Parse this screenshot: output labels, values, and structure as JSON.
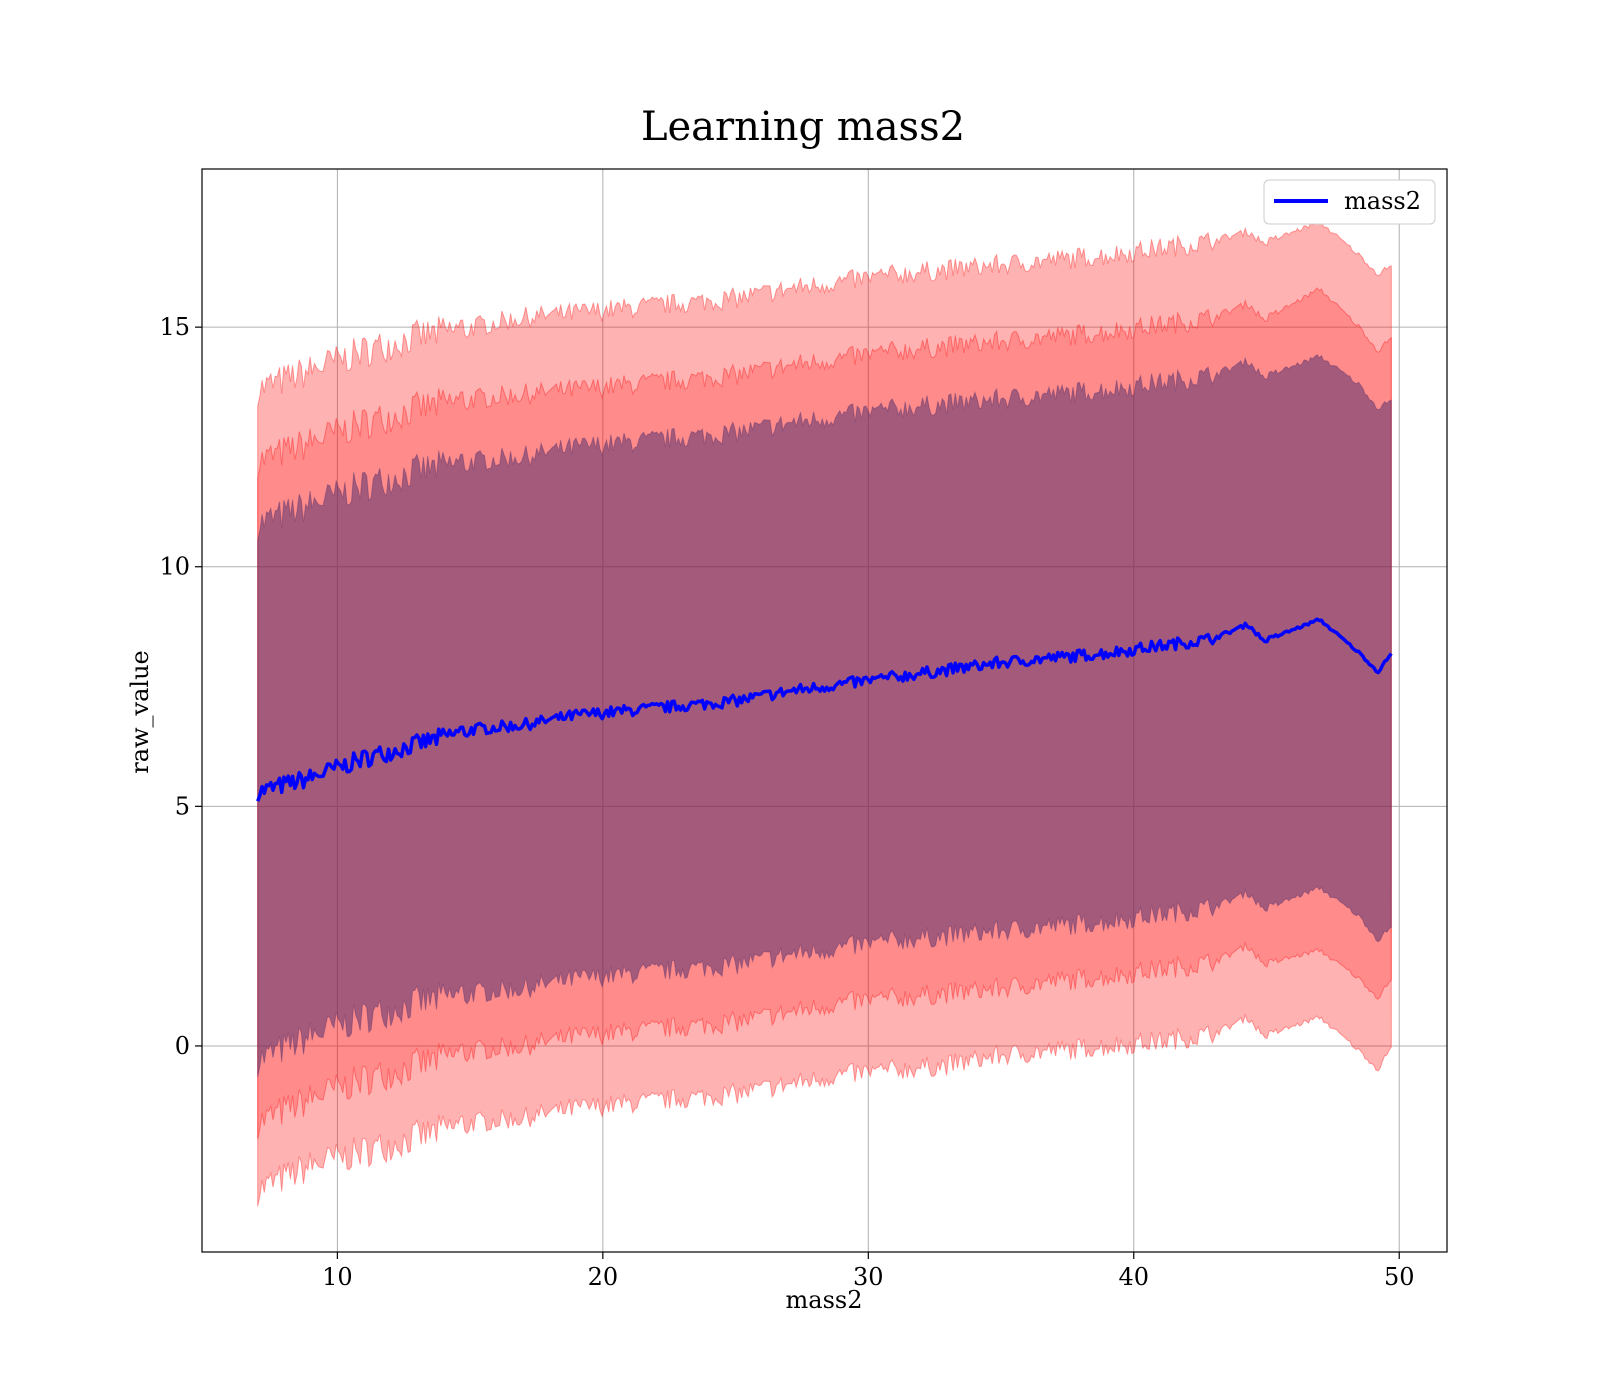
{
  "chart_data": {
    "type": "line",
    "title": "Learning mass2",
    "xlabel": "mass2",
    "ylabel": "raw_value",
    "xlim": [
      4.9,
      51.8
    ],
    "ylim": [
      -4.3,
      18.3
    ],
    "xticks": [
      10,
      20,
      30,
      40,
      50
    ],
    "yticks": [
      0,
      5,
      10,
      15
    ],
    "grid": true,
    "legend_position": "upper-right",
    "series_color": "#0000ff",
    "series": [
      {
        "name": "mass2",
        "x": [
          7,
          9,
          11,
          13,
          15,
          17,
          19,
          21,
          23,
          25,
          27,
          29,
          31,
          33,
          35,
          37,
          39,
          41,
          43,
          44.3,
          44.9,
          47,
          48.5,
          49.2,
          49.7
        ],
        "y": [
          5.3,
          5.6,
          6.0,
          6.3,
          6.6,
          6.7,
          6.9,
          7.0,
          7.1,
          7.2,
          7.4,
          7.55,
          7.7,
          7.85,
          8.0,
          8.1,
          8.2,
          8.35,
          8.5,
          8.8,
          8.45,
          8.9,
          8.2,
          7.8,
          8.2
        ]
      }
    ],
    "bands": [
      {
        "level": "outer",
        "color": "#ff0000",
        "opacity": 0.3,
        "upper": [
          13.7,
          14.1,
          14.5,
          14.8,
          15.0,
          15.2,
          15.3,
          15.4,
          15.5,
          15.6,
          15.8,
          15.95,
          16.1,
          16.2,
          16.3,
          16.4,
          16.5,
          16.65,
          16.8,
          17.0,
          16.75,
          17.2,
          16.5,
          16.1,
          16.3
        ],
        "lower": [
          -3.0,
          -2.5,
          -2.2,
          -1.9,
          -1.6,
          -1.5,
          -1.3,
          -1.2,
          -1.1,
          -1.0,
          -0.8,
          -0.6,
          -0.5,
          -0.4,
          -0.2,
          -0.1,
          0.0,
          0.1,
          0.25,
          0.6,
          0.2,
          0.6,
          -0.1,
          -0.5,
          0.0
        ]
      },
      {
        "level": "middle",
        "color": "#ff0000",
        "opacity": 0.22,
        "upper": [
          12.2,
          12.6,
          13.0,
          13.3,
          13.5,
          13.6,
          13.7,
          13.8,
          13.9,
          14.0,
          14.2,
          14.35,
          14.5,
          14.6,
          14.7,
          14.8,
          14.9,
          15.05,
          15.2,
          15.5,
          15.15,
          15.8,
          15.0,
          14.5,
          14.8
        ],
        "lower": [
          -1.6,
          -1.1,
          -0.7,
          -0.4,
          -0.1,
          0.0,
          0.2,
          0.3,
          0.4,
          0.5,
          0.7,
          0.9,
          1.0,
          1.1,
          1.2,
          1.35,
          1.45,
          1.6,
          1.75,
          2.1,
          1.7,
          2.0,
          1.4,
          1.0,
          1.4
        ]
      },
      {
        "level": "inner",
        "color": "#4a2a6a",
        "opacity": 0.5,
        "upper": [
          10.9,
          11.3,
          11.7,
          12.0,
          12.2,
          12.3,
          12.5,
          12.6,
          12.7,
          12.8,
          13.0,
          13.15,
          13.3,
          13.4,
          13.5,
          13.6,
          13.7,
          13.85,
          14.0,
          14.3,
          13.95,
          14.4,
          13.8,
          13.3,
          13.5
        ],
        "lower": [
          -0.3,
          0.2,
          0.6,
          0.9,
          1.1,
          1.2,
          1.4,
          1.5,
          1.6,
          1.7,
          1.9,
          2.05,
          2.2,
          2.3,
          2.4,
          2.5,
          2.6,
          2.75,
          2.9,
          3.2,
          2.85,
          3.3,
          2.7,
          2.2,
          2.5
        ]
      }
    ]
  }
}
